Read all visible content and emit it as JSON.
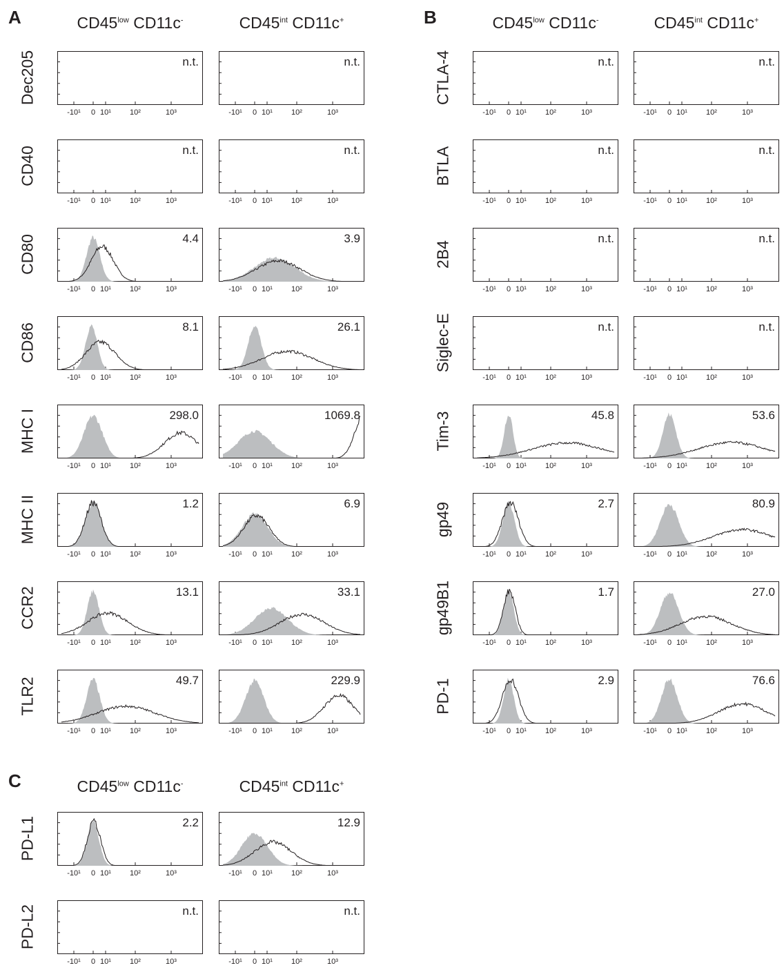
{
  "panels": {
    "A": "A",
    "B": "B",
    "C": "C"
  },
  "column_headers": {
    "left": {
      "main": "CD45",
      "sup": "low",
      "rest": " CD11c",
      "sup2": "-"
    },
    "right": {
      "main": "CD45",
      "sup": "int",
      "rest": " CD11c",
      "sup2": "+"
    }
  },
  "x_ticks": [
    "-10¹",
    "0",
    "10¹",
    "10²",
    "10³"
  ],
  "chart_data": [
    {
      "type": "histogram",
      "panel": "A",
      "marker": "Dec205",
      "left": {
        "value": "n.t."
      },
      "right": {
        "value": "n.t."
      }
    },
    {
      "type": "histogram",
      "panel": "A",
      "marker": "CD40",
      "left": {
        "value": "n.t."
      },
      "right": {
        "value": "n.t."
      }
    },
    {
      "type": "histogram",
      "panel": "A",
      "marker": "CD80",
      "left": {
        "value": "4.4",
        "control_peak": 0.0,
        "control_width": 0.18,
        "stain_peak": 0.25,
        "stain_width": 0.3
      },
      "right": {
        "value": "3.9",
        "control_peak": 0.55,
        "control_width": 0.55,
        "stain_peak": 0.65,
        "stain_width": 0.6
      }
    },
    {
      "type": "histogram",
      "panel": "A",
      "marker": "CD86",
      "left": {
        "value": "8.1",
        "control_peak": -0.05,
        "control_width": 0.16,
        "stain_peak": 0.2,
        "stain_width": 0.4
      },
      "right": {
        "value": "26.1",
        "control_peak": 0.0,
        "control_width": 0.18,
        "stain_peak": 0.9,
        "stain_width": 0.7
      }
    },
    {
      "type": "histogram",
      "panel": "A",
      "marker": "MHC I",
      "left": {
        "value": "298.0",
        "control_peak": 0.0,
        "control_width": 0.25,
        "stain_peak": 2.4,
        "stain_width": 0.45
      },
      "right": {
        "value": "1069.8",
        "control_peak": 0.0,
        "control_width": 0.45,
        "stain_peak": 3.0,
        "stain_width": 0.25
      }
    },
    {
      "type": "histogram",
      "panel": "A",
      "marker": "MHC II",
      "left": {
        "value": "1.2",
        "control_peak": 0.0,
        "control_width": 0.22,
        "stain_peak": 0.0,
        "stain_width": 0.22
      },
      "right": {
        "value": "6.9",
        "control_peak": 0.0,
        "control_width": 0.35,
        "stain_peak": 0.05,
        "stain_width": 0.35
      }
    },
    {
      "type": "histogram",
      "panel": "A",
      "marker": "CCR2",
      "left": {
        "value": "13.1",
        "control_peak": 0.0,
        "control_width": 0.16,
        "stain_peak": 0.4,
        "stain_width": 0.55
      },
      "right": {
        "value": "33.1",
        "control_peak": 0.45,
        "control_width": 0.45,
        "stain_peak": 1.3,
        "stain_width": 0.6
      }
    },
    {
      "type": "histogram",
      "panel": "A",
      "marker": "TLR2",
      "left": {
        "value": "49.7",
        "control_peak": 0.0,
        "control_width": 0.18,
        "stain_peak": 0.9,
        "stain_width": 0.8
      },
      "right": {
        "value": "229.9",
        "control_peak": 0.0,
        "control_width": 0.25,
        "stain_peak": 2.3,
        "stain_width": 0.4
      }
    },
    {
      "type": "histogram",
      "panel": "B",
      "marker": "CTLA-4",
      "left": {
        "value": "n.t."
      },
      "right": {
        "value": "n.t."
      }
    },
    {
      "type": "histogram",
      "panel": "B",
      "marker": "BTLA",
      "left": {
        "value": "n.t."
      },
      "right": {
        "value": "n.t."
      }
    },
    {
      "type": "histogram",
      "panel": "B",
      "marker": "2B4",
      "left": {
        "value": "n.t."
      },
      "right": {
        "value": "n.t."
      }
    },
    {
      "type": "histogram",
      "panel": "B",
      "marker": "Siglec-E",
      "left": {
        "value": "n.t."
      },
      "right": {
        "value": "n.t."
      }
    },
    {
      "type": "histogram",
      "panel": "B",
      "marker": "Tim-3",
      "left": {
        "value": "45.8",
        "control_peak": 0.0,
        "control_width": 0.12,
        "stain_peak": 1.6,
        "stain_width": 0.95
      },
      "right": {
        "value": "53.6",
        "control_peak": 0.0,
        "control_width": 0.18,
        "stain_peak": 1.7,
        "stain_width": 0.9
      }
    },
    {
      "type": "histogram",
      "panel": "B",
      "marker": "gp49",
      "left": {
        "value": "2.7",
        "control_peak": 0.0,
        "control_width": 0.16,
        "stain_peak": 0.05,
        "stain_width": 0.22
      },
      "right": {
        "value": "80.9",
        "control_peak": 0.0,
        "control_width": 0.25,
        "stain_peak": 2.0,
        "stain_width": 0.8
      }
    },
    {
      "type": "histogram",
      "panel": "B",
      "marker": "gp49B1",
      "left": {
        "value": "1.7",
        "control_peak": 0.0,
        "control_width": 0.14,
        "stain_peak": 0.02,
        "stain_width": 0.16
      },
      "right": {
        "value": "27.0",
        "control_peak": 0.0,
        "control_width": 0.25,
        "stain_peak": 1.0,
        "stain_width": 0.7
      }
    },
    {
      "type": "histogram",
      "panel": "B",
      "marker": "PD-1",
      "left": {
        "value": "2.9",
        "control_peak": 0.0,
        "control_width": 0.14,
        "stain_peak": 0.05,
        "stain_width": 0.22
      },
      "right": {
        "value": "76.6",
        "control_peak": 0.0,
        "control_width": 0.22,
        "stain_peak": 2.0,
        "stain_width": 0.65
      }
    },
    {
      "type": "histogram",
      "panel": "C",
      "marker": "PD-L1",
      "left": {
        "value": "2.2",
        "control_peak": 0.0,
        "control_width": 0.16,
        "stain_peak": 0.02,
        "stain_width": 0.18
      },
      "right": {
        "value": "12.9",
        "control_peak": 0.0,
        "control_width": 0.35,
        "stain_peak": 0.5,
        "stain_width": 0.5
      }
    },
    {
      "type": "histogram",
      "panel": "C",
      "marker": "PD-L2",
      "left": {
        "value": "n.t."
      },
      "right": {
        "value": "n.t."
      }
    }
  ]
}
